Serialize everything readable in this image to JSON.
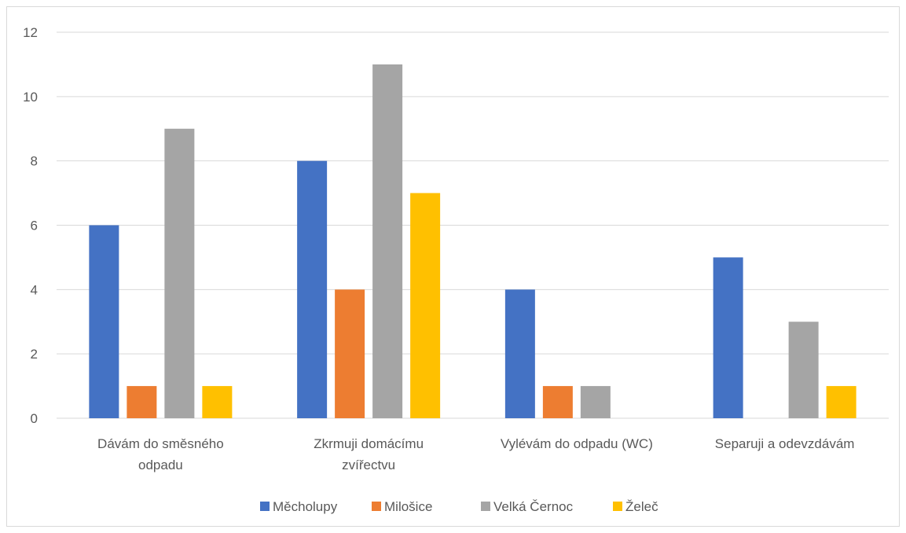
{
  "chart_data": {
    "type": "bar",
    "title": "",
    "xlabel": "",
    "ylabel": "",
    "ylim": [
      0,
      12
    ],
    "yticks": [
      0,
      2,
      4,
      6,
      8,
      10,
      12
    ],
    "grid": true,
    "legend_position": "bottom",
    "categories": [
      [
        "Dávám do směsného",
        "odpadu"
      ],
      [
        "Zkrmuji domácímu",
        "zvířectvu"
      ],
      [
        "Vylévám do odpadu (WC)"
      ],
      [
        "Separuji a odevzdávám"
      ]
    ],
    "series": [
      {
        "name": "Měcholupy",
        "color": "#4472C4",
        "values": [
          6,
          8,
          4,
          5
        ]
      },
      {
        "name": "Milošice",
        "color": "#ED7D31",
        "values": [
          1,
          4,
          1,
          0
        ]
      },
      {
        "name": "Velká Černoc",
        "color": "#A5A5A5",
        "values": [
          9,
          11,
          1,
          3
        ]
      },
      {
        "name": "Želeč",
        "color": "#FFC000",
        "values": [
          1,
          7,
          0,
          1
        ]
      }
    ]
  }
}
